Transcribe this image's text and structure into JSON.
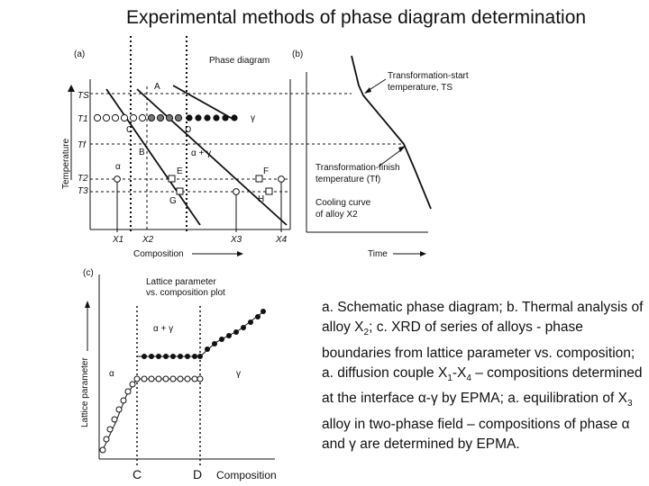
{
  "title": "Experimental methods of phase diagram determination",
  "panel_a": {
    "tag": "(a)",
    "heading": "Phase diagram",
    "ylabel": "Temperature",
    "xlabel": "Composition",
    "y_ticks": [
      "TS",
      "T1",
      "Tf",
      "T2",
      "T3"
    ],
    "x_ticks": [
      "X1",
      "X2",
      "X3",
      "X4"
    ],
    "points": [
      "A",
      "B",
      "C",
      "D",
      "E",
      "F",
      "G",
      "H"
    ],
    "region_alpha_gamma": "α + γ",
    "region_alpha": "α",
    "region_gamma": "γ"
  },
  "panel_b": {
    "tag": "(b)",
    "start_label_1": "Transformation-start",
    "start_label_2": "temperature, TS",
    "finish_label_1": "Transformation-finish",
    "finish_label_2": "temperature (Tf)",
    "cooling_label_1": "Cooling curve",
    "cooling_label_2": "of alloy X2",
    "xlabel": "Time"
  },
  "panel_c": {
    "tag": "(c)",
    "heading_1": "Lattice parameter",
    "heading_2": "vs. composition plot",
    "ylabel": "Lattice parameter",
    "region_alpha_gamma": "α + γ",
    "region_alpha": "α",
    "region_gamma": "γ",
    "marker_c": "C",
    "marker_d": "D",
    "xlabel": "Composition"
  },
  "caption": {
    "s1": "a. Schematic phase diagram; b. Thermal analysis of alloy X",
    "s1_sub": "2",
    "s2": "; c. XRD of series of alloys - phase boundaries from lattice parameter vs. composition; a. diffusion couple X",
    "s2_sub1": "1",
    "s3": "-X",
    "s3_sub4": "4",
    "s4": " – compositions determined at the interface α-γ by EPMA; a. equilibration of X",
    "s4_sub3": "3",
    "s5": " alloy in two-phase field – compositions of phase α and γ are determined by EPMA."
  }
}
